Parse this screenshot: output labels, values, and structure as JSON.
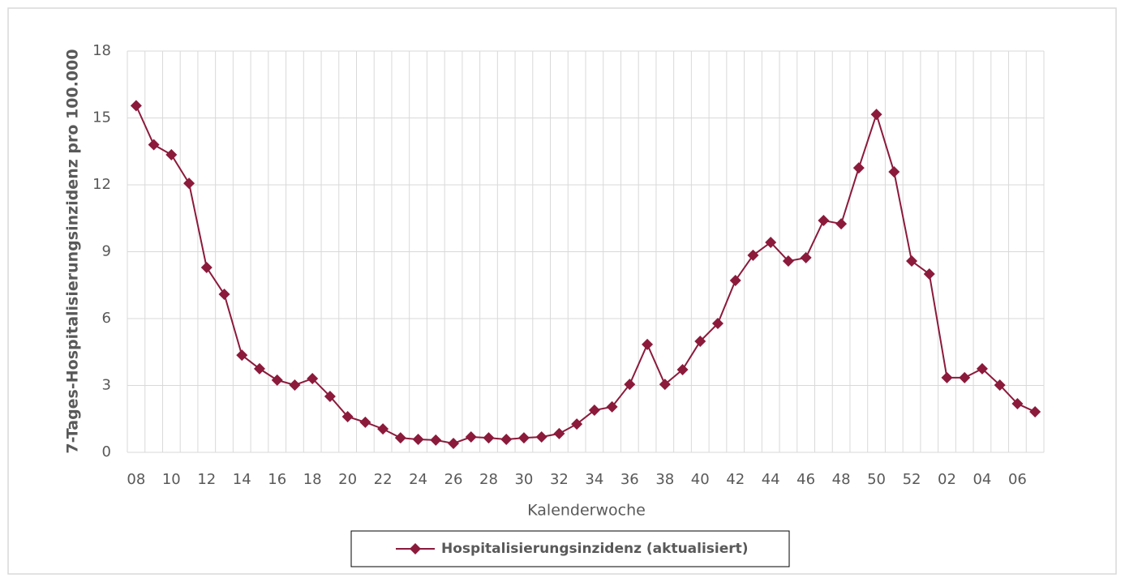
{
  "chart_data": {
    "type": "line",
    "x_label": "Kalenderwoche",
    "y_label": "7-Tages-Hospitalisierungsinzidenz pro 100.000",
    "categories": [
      "08",
      null,
      "10",
      null,
      "12",
      null,
      "14",
      null,
      "16",
      null,
      "18",
      null,
      "20",
      null,
      "22",
      null,
      "24",
      null,
      "26",
      null,
      "28",
      null,
      "30",
      null,
      "32",
      null,
      "34",
      null,
      "36",
      null,
      "38",
      null,
      "40",
      null,
      "42",
      null,
      "44",
      null,
      "46",
      null,
      "48",
      null,
      "50",
      null,
      "52",
      null,
      "02",
      null,
      "04",
      null,
      "06",
      null
    ],
    "series": [
      {
        "name": "Hospitalisierungsinzidenz (aktualisiert)",
        "color": "#8b1a3b",
        "values": [
          15.55,
          13.8,
          13.35,
          12.07,
          8.29,
          7.09,
          4.36,
          3.75,
          3.24,
          3.02,
          3.31,
          2.51,
          1.6,
          1.35,
          1.05,
          0.65,
          0.58,
          0.55,
          0.4,
          0.69,
          0.65,
          0.58,
          0.65,
          0.69,
          0.84,
          1.27,
          1.89,
          2.04,
          3.05,
          4.84,
          3.05,
          3.71,
          4.98,
          5.78,
          7.71,
          8.84,
          9.42,
          8.58,
          8.73,
          10.4,
          10.25,
          12.76,
          15.16,
          12.58,
          8.58,
          8.0,
          3.35,
          3.35,
          3.75,
          3.02,
          2.18,
          1.82
        ]
      }
    ],
    "ylim": [
      0,
      18
    ],
    "yticks": [
      0,
      3,
      6,
      9,
      12,
      15,
      18
    ],
    "grid": true
  }
}
